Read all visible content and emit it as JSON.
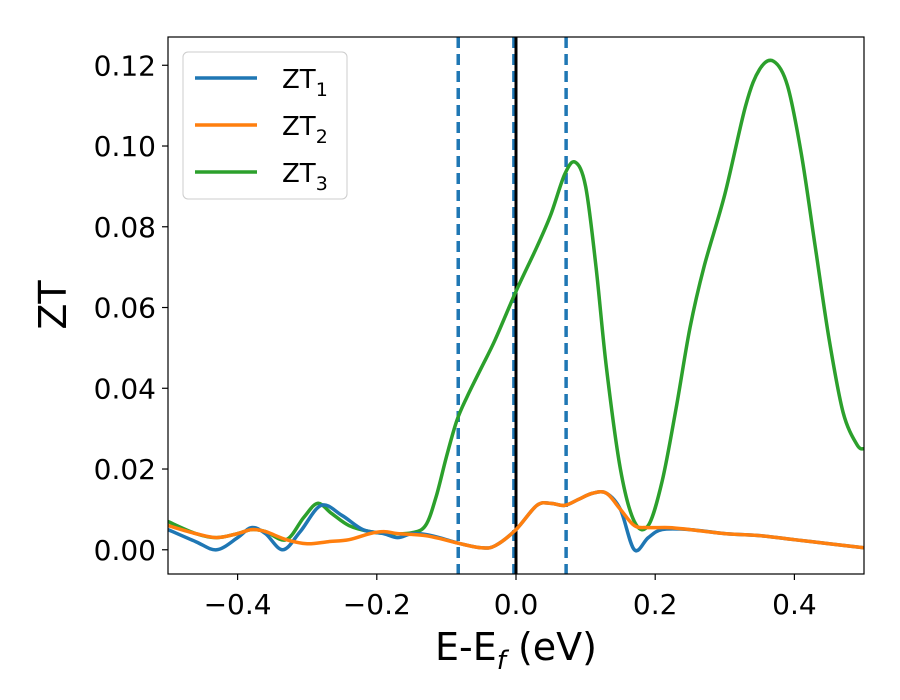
{
  "chart_data": {
    "type": "line",
    "xlabel": "E-E",
    "xlabel_sub": "f",
    "xlabel_unit": " (eV)",
    "ylabel": "ZT",
    "xlim": [
      -0.5,
      0.5
    ],
    "ylim": [
      -0.006,
      0.127
    ],
    "x_ticks": [
      -0.4,
      -0.2,
      0.0,
      0.2,
      0.4
    ],
    "x_tick_labels": [
      "−0.4",
      "−0.2",
      "0.0",
      "0.2",
      "0.4"
    ],
    "y_ticks": [
      0.0,
      0.02,
      0.04,
      0.06,
      0.08,
      0.1,
      0.12
    ],
    "y_tick_labels": [
      "0.00",
      "0.02",
      "0.04",
      "0.06",
      "0.08",
      "0.10",
      "0.12"
    ],
    "grid": false,
    "legend_position": "top-left",
    "vertical_lines": [
      {
        "x": -0.083,
        "style": "dashed",
        "color": "#1f77b4"
      },
      {
        "x": 0.072,
        "style": "dashed",
        "color": "#1f77b4"
      },
      {
        "x": -0.003,
        "style": "dashed",
        "color": "#1f77b4"
      },
      {
        "x": 0.0,
        "style": "solid",
        "color": "#000000"
      }
    ],
    "series": [
      {
        "name": "ZT",
        "name_sub": "1",
        "color": "#1f77b4",
        "x": [
          -0.5,
          -0.46,
          -0.43,
          -0.4,
          -0.38,
          -0.36,
          -0.335,
          -0.31,
          -0.28,
          -0.25,
          -0.22,
          -0.19,
          -0.17,
          -0.15,
          -0.13,
          -0.11,
          -0.08,
          -0.05,
          -0.03,
          0.0,
          0.03,
          0.05,
          0.07,
          0.09,
          0.11,
          0.13,
          0.15,
          0.17,
          0.19,
          0.21,
          0.25,
          0.3,
          0.35,
          0.4,
          0.45,
          0.5
        ],
        "y": [
          0.005,
          0.002,
          0.0,
          0.003,
          0.0055,
          0.004,
          0.0,
          0.0045,
          0.011,
          0.0085,
          0.005,
          0.004,
          0.003,
          0.004,
          0.0038,
          0.003,
          0.0015,
          0.0005,
          0.001,
          0.005,
          0.011,
          0.0115,
          0.011,
          0.0125,
          0.014,
          0.014,
          0.01,
          0.0,
          0.003,
          0.005,
          0.005,
          0.004,
          0.0035,
          0.0025,
          0.0015,
          0.0005
        ]
      },
      {
        "name": "ZT",
        "name_sub": "2",
        "color": "#ff7f0e",
        "x": [
          -0.5,
          -0.46,
          -0.43,
          -0.4,
          -0.38,
          -0.36,
          -0.33,
          -0.3,
          -0.27,
          -0.24,
          -0.21,
          -0.19,
          -0.17,
          -0.15,
          -0.13,
          -0.11,
          -0.08,
          -0.05,
          -0.03,
          0.0,
          0.03,
          0.05,
          0.07,
          0.09,
          0.11,
          0.13,
          0.15,
          0.17,
          0.19,
          0.22,
          0.25,
          0.3,
          0.35,
          0.4,
          0.45,
          0.5
        ],
        "y": [
          0.006,
          0.004,
          0.003,
          0.004,
          0.005,
          0.0045,
          0.0025,
          0.0015,
          0.002,
          0.0025,
          0.004,
          0.0045,
          0.004,
          0.0038,
          0.0035,
          0.0028,
          0.0015,
          0.0005,
          0.001,
          0.005,
          0.011,
          0.0115,
          0.011,
          0.0125,
          0.014,
          0.014,
          0.01,
          0.006,
          0.0055,
          0.0055,
          0.005,
          0.004,
          0.0035,
          0.0025,
          0.0015,
          0.0005
        ]
      },
      {
        "name": "ZT",
        "name_sub": "3",
        "color": "#2ca02c",
        "x": [
          -0.5,
          -0.46,
          -0.43,
          -0.4,
          -0.38,
          -0.36,
          -0.33,
          -0.305,
          -0.285,
          -0.265,
          -0.24,
          -0.21,
          -0.18,
          -0.15,
          -0.13,
          -0.115,
          -0.1,
          -0.085,
          -0.07,
          -0.05,
          -0.03,
          0.0,
          0.03,
          0.05,
          0.07,
          0.085,
          0.1,
          0.115,
          0.13,
          0.15,
          0.17,
          0.19,
          0.21,
          0.23,
          0.25,
          0.27,
          0.3,
          0.33,
          0.35,
          0.37,
          0.39,
          0.41,
          0.43,
          0.45,
          0.47,
          0.49,
          0.5
        ],
        "y": [
          0.007,
          0.004,
          0.003,
          0.004,
          0.005,
          0.0045,
          0.0025,
          0.008,
          0.0115,
          0.009,
          0.006,
          0.0045,
          0.004,
          0.0042,
          0.006,
          0.013,
          0.023,
          0.032,
          0.038,
          0.045,
          0.052,
          0.064,
          0.075,
          0.083,
          0.093,
          0.096,
          0.09,
          0.07,
          0.045,
          0.02,
          0.007,
          0.006,
          0.017,
          0.035,
          0.055,
          0.07,
          0.088,
          0.11,
          0.119,
          0.121,
          0.115,
          0.098,
          0.075,
          0.052,
          0.034,
          0.026,
          0.025
        ]
      }
    ]
  }
}
